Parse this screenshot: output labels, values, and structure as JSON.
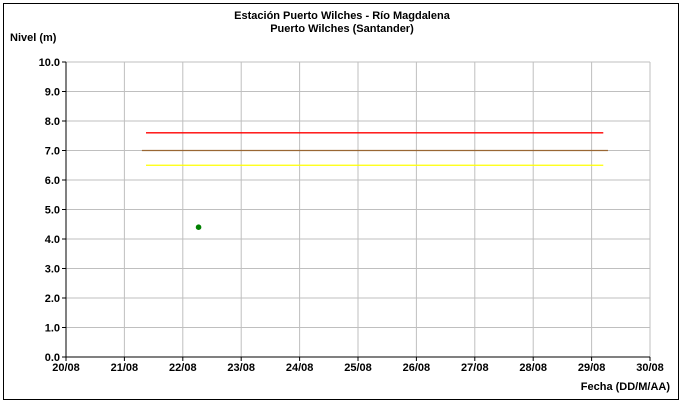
{
  "chart_data": {
    "type": "scatter",
    "title": "Estación Puerto Wilches - Río Magdalena",
    "subtitle": "Puerto Wilches (Santander)",
    "ylabel": "Nivel (m)",
    "xlabel": "Fecha (DD/M/AA)",
    "ylim": [
      0,
      10
    ],
    "yticks": [
      "0.0",
      "1.0",
      "2.0",
      "3.0",
      "4.0",
      "5.0",
      "6.0",
      "7.0",
      "8.0",
      "9.0",
      "10.0"
    ],
    "xlim": [
      "20/08",
      "30/08"
    ],
    "xticks": [
      "20/08",
      "21/08",
      "22/08",
      "23/08",
      "24/08",
      "25/08",
      "26/08",
      "27/08",
      "28/08",
      "29/08",
      "30/08"
    ],
    "grid": true,
    "series": [
      {
        "color": "#008000",
        "marker": "circle",
        "points": [
          {
            "x": "22/08",
            "x_day_fraction": 0.27,
            "y": 4.4
          }
        ]
      }
    ],
    "reference_lines": [
      {
        "color": "#ff0000",
        "y": 7.6,
        "x_start": "21/08",
        "x_start_fraction": 0.37,
        "x_end": "29/08",
        "x_end_fraction": 0.2
      },
      {
        "color": "#996633",
        "y": 7.0,
        "x_start": "21/08",
        "x_start_fraction": 0.3,
        "x_end": "29/08",
        "x_end_fraction": 0.28
      },
      {
        "color": "#ffff00",
        "y": 6.5,
        "x_start": "21/08",
        "x_start_fraction": 0.37,
        "x_end": "29/08",
        "x_end_fraction": 0.2
      }
    ]
  }
}
